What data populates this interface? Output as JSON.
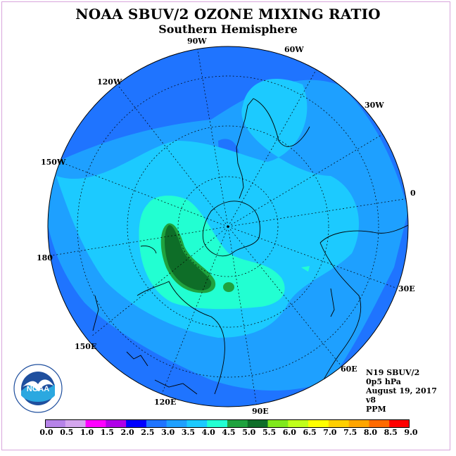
{
  "title": "NOAA SBUV/2 OZONE MIXING RATIO",
  "subtitle": "Southern Hemisphere",
  "longitude_labels": [
    "90W",
    "60W",
    "30W",
    "0",
    "30E",
    "60E",
    "90E",
    "120E",
    "150E",
    "180",
    "150W",
    "120W"
  ],
  "info": {
    "satellite": "N19 SBUV/2",
    "level": "0p5 hPa",
    "date": "August 19, 2017",
    "version": "v8",
    "units": "PPM"
  },
  "logo_text": "NOAA",
  "colorbar": {
    "ticks": [
      "0.0",
      "0.5",
      "1.0",
      "1.5",
      "2.0",
      "2.5",
      "3.0",
      "3.5",
      "4.0",
      "4.5",
      "5.0",
      "5.5",
      "6.0",
      "6.5",
      "7.0",
      "7.5",
      "8.0",
      "8.5",
      "9.0"
    ],
    "colors": [
      "#b683e8",
      "#d4a6ee",
      "#ff00ff",
      "#b000e8",
      "#0000ff",
      "#1f74ff",
      "#1ea0ff",
      "#1ccaff",
      "#22ffd2",
      "#1fa23e",
      "#0e6e28",
      "#7fe81c",
      "#c0ff1a",
      "#ffff00",
      "#ffcf00",
      "#ffa500",
      "#ff6a00",
      "#ff0000",
      "#7a4a2c"
    ]
  },
  "map_colors": {
    "level_2_5": "#1f74ff",
    "level_3_0": "#1ea0ff",
    "level_3_5": "#1ccaff",
    "level_4_0": "#22ffd2",
    "level_4_5": "#1fa23e",
    "level_5_0": "#0e6e28"
  }
}
